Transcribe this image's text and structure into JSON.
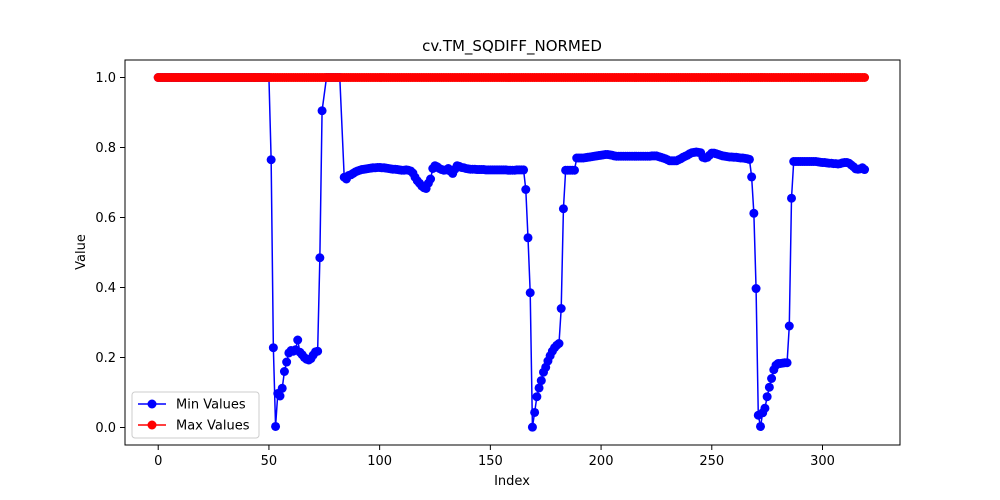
{
  "chart_data": {
    "type": "line",
    "title": "cv.TM_SQDIFF_NORMED",
    "xlabel": "Index",
    "ylabel": "Value",
    "xlim": [
      -15,
      335
    ],
    "ylim": [
      -0.05,
      1.05
    ],
    "xticks": [
      0,
      50,
      100,
      150,
      200,
      250,
      300
    ],
    "yticks": [
      0.0,
      0.2,
      0.4,
      0.6,
      0.8,
      1.0
    ],
    "xtick_labels": [
      "0",
      "50",
      "100",
      "150",
      "200",
      "250",
      "300"
    ],
    "ytick_labels": [
      "0.0",
      "0.2",
      "0.4",
      "0.6",
      "0.8",
      "1.0"
    ],
    "grid": false,
    "legend_position": "lower-left",
    "series": [
      {
        "name": "Min Values",
        "color": "#0000ff",
        "marker": "circle",
        "segments": [
          {
            "x_start": 0,
            "x_end": 50,
            "value": 1.0
          },
          {
            "x_start": 76,
            "x_end": 82,
            "value": 1.0
          }
        ],
        "points": [
          [
            51,
            0.765
          ],
          [
            52,
            0.228
          ],
          [
            53,
            0.003
          ],
          [
            54,
            0.097
          ],
          [
            55,
            0.09
          ],
          [
            56,
            0.112
          ],
          [
            57,
            0.16
          ],
          [
            58,
            0.187
          ],
          [
            59,
            0.213
          ],
          [
            60,
            0.22
          ],
          [
            61,
            0.218
          ],
          [
            62,
            0.222
          ],
          [
            63,
            0.25
          ],
          [
            64,
            0.215
          ],
          [
            65,
            0.208
          ],
          [
            66,
            0.2
          ],
          [
            67,
            0.195
          ],
          [
            68,
            0.193
          ],
          [
            69,
            0.197
          ],
          [
            70,
            0.207
          ],
          [
            71,
            0.216
          ],
          [
            72,
            0.218
          ],
          [
            73,
            0.485
          ],
          [
            74,
            0.905
          ],
          [
            84,
            0.715
          ],
          [
            85,
            0.71
          ],
          [
            86,
            0.72
          ],
          [
            87,
            0.722
          ],
          [
            88,
            0.726
          ],
          [
            89,
            0.73
          ],
          [
            90,
            0.733
          ],
          [
            91,
            0.735
          ],
          [
            92,
            0.737
          ],
          [
            93,
            0.738
          ],
          [
            94,
            0.739
          ],
          [
            95,
            0.74
          ],
          [
            96,
            0.741
          ],
          [
            97,
            0.742
          ],
          [
            98,
            0.742
          ],
          [
            99,
            0.743
          ],
          [
            100,
            0.743
          ],
          [
            101,
            0.742
          ],
          [
            102,
            0.742
          ],
          [
            103,
            0.741
          ],
          [
            104,
            0.74
          ],
          [
            105,
            0.739
          ],
          [
            106,
            0.738
          ],
          [
            107,
            0.738
          ],
          [
            108,
            0.737
          ],
          [
            109,
            0.736
          ],
          [
            110,
            0.735
          ],
          [
            111,
            0.735
          ],
          [
            112,
            0.736
          ],
          [
            113,
            0.735
          ],
          [
            114,
            0.733
          ],
          [
            115,
            0.727
          ],
          [
            116,
            0.715
          ],
          [
            117,
            0.705
          ],
          [
            118,
            0.698
          ],
          [
            119,
            0.69
          ],
          [
            120,
            0.685
          ],
          [
            121,
            0.683
          ],
          [
            122,
            0.698
          ],
          [
            123,
            0.71
          ],
          [
            124,
            0.74
          ],
          [
            125,
            0.748
          ],
          [
            126,
            0.745
          ],
          [
            127,
            0.74
          ],
          [
            128,
            0.737
          ],
          [
            129,
            0.735
          ],
          [
            130,
            0.736
          ],
          [
            131,
            0.74
          ],
          [
            132,
            0.732
          ],
          [
            133,
            0.726
          ],
          [
            134,
            0.738
          ],
          [
            135,
            0.748
          ],
          [
            136,
            0.746
          ],
          [
            137,
            0.743
          ],
          [
            138,
            0.742
          ],
          [
            139,
            0.74
          ],
          [
            140,
            0.739
          ],
          [
            141,
            0.738
          ],
          [
            142,
            0.738
          ],
          [
            143,
            0.738
          ],
          [
            144,
            0.737
          ],
          [
            145,
            0.737
          ],
          [
            146,
            0.737
          ],
          [
            147,
            0.737
          ],
          [
            148,
            0.736
          ],
          [
            149,
            0.736
          ],
          [
            150,
            0.736
          ],
          [
            151,
            0.736
          ],
          [
            152,
            0.736
          ],
          [
            153,
            0.736
          ],
          [
            154,
            0.736
          ],
          [
            155,
            0.736
          ],
          [
            156,
            0.736
          ],
          [
            157,
            0.736
          ],
          [
            158,
            0.735
          ],
          [
            159,
            0.735
          ],
          [
            160,
            0.735
          ],
          [
            161,
            0.735
          ],
          [
            162,
            0.736
          ],
          [
            163,
            0.736
          ],
          [
            164,
            0.736
          ],
          [
            165,
            0.736
          ],
          [
            166,
            0.68
          ],
          [
            167,
            0.542
          ],
          [
            168,
            0.385
          ],
          [
            169,
            0.001
          ],
          [
            170,
            0.043
          ],
          [
            171,
            0.088
          ],
          [
            172,
            0.113
          ],
          [
            173,
            0.134
          ],
          [
            174,
            0.158
          ],
          [
            175,
            0.172
          ],
          [
            176,
            0.19
          ],
          [
            177,
            0.205
          ],
          [
            178,
            0.218
          ],
          [
            179,
            0.228
          ],
          [
            180,
            0.235
          ],
          [
            181,
            0.24
          ],
          [
            182,
            0.34
          ],
          [
            183,
            0.625
          ],
          [
            184,
            0.735
          ],
          [
            185,
            0.735
          ],
          [
            186,
            0.735
          ],
          [
            187,
            0.735
          ],
          [
            188,
            0.735
          ],
          [
            189,
            0.77
          ],
          [
            190,
            0.77
          ],
          [
            191,
            0.77
          ],
          [
            192,
            0.77
          ],
          [
            193,
            0.771
          ],
          [
            194,
            0.772
          ],
          [
            195,
            0.773
          ],
          [
            196,
            0.774
          ],
          [
            197,
            0.775
          ],
          [
            198,
            0.776
          ],
          [
            199,
            0.777
          ],
          [
            200,
            0.778
          ],
          [
            201,
            0.779
          ],
          [
            202,
            0.78
          ],
          [
            203,
            0.78
          ],
          [
            204,
            0.779
          ],
          [
            205,
            0.778
          ],
          [
            206,
            0.776
          ],
          [
            207,
            0.775
          ],
          [
            208,
            0.775
          ],
          [
            209,
            0.775
          ],
          [
            210,
            0.775
          ],
          [
            211,
            0.775
          ],
          [
            212,
            0.775
          ],
          [
            213,
            0.775
          ],
          [
            214,
            0.775
          ],
          [
            215,
            0.775
          ],
          [
            216,
            0.775
          ],
          [
            217,
            0.775
          ],
          [
            218,
            0.775
          ],
          [
            219,
            0.775
          ],
          [
            220,
            0.775
          ],
          [
            221,
            0.775
          ],
          [
            222,
            0.775
          ],
          [
            223,
            0.776
          ],
          [
            224,
            0.776
          ],
          [
            225,
            0.776
          ],
          [
            226,
            0.774
          ],
          [
            227,
            0.772
          ],
          [
            228,
            0.77
          ],
          [
            229,
            0.768
          ],
          [
            230,
            0.765
          ],
          [
            231,
            0.762
          ],
          [
            232,
            0.762
          ],
          [
            233,
            0.762
          ],
          [
            234,
            0.762
          ],
          [
            235,
            0.765
          ],
          [
            236,
            0.768
          ],
          [
            237,
            0.772
          ],
          [
            238,
            0.775
          ],
          [
            239,
            0.778
          ],
          [
            240,
            0.782
          ],
          [
            241,
            0.785
          ],
          [
            242,
            0.786
          ],
          [
            243,
            0.787
          ],
          [
            244,
            0.786
          ],
          [
            245,
            0.785
          ],
          [
            246,
            0.772
          ],
          [
            247,
            0.77
          ],
          [
            248,
            0.772
          ],
          [
            249,
            0.778
          ],
          [
            250,
            0.784
          ],
          [
            251,
            0.784
          ],
          [
            252,
            0.782
          ],
          [
            253,
            0.78
          ],
          [
            254,
            0.778
          ],
          [
            255,
            0.776
          ],
          [
            256,
            0.775
          ],
          [
            257,
            0.774
          ],
          [
            258,
            0.773
          ],
          [
            259,
            0.773
          ],
          [
            260,
            0.772
          ],
          [
            261,
            0.772
          ],
          [
            262,
            0.771
          ],
          [
            263,
            0.77
          ],
          [
            264,
            0.77
          ],
          [
            265,
            0.769
          ],
          [
            266,
            0.768
          ],
          [
            267,
            0.766
          ],
          [
            268,
            0.716
          ],
          [
            269,
            0.612
          ],
          [
            270,
            0.397
          ],
          [
            271,
            0.035
          ],
          [
            272,
            0.003
          ],
          [
            273,
            0.042
          ],
          [
            274,
            0.055
          ],
          [
            275,
            0.088
          ],
          [
            276,
            0.115
          ],
          [
            277,
            0.14
          ],
          [
            278,
            0.165
          ],
          [
            279,
            0.178
          ],
          [
            280,
            0.183
          ],
          [
            281,
            0.183
          ],
          [
            282,
            0.184
          ],
          [
            283,
            0.185
          ],
          [
            284,
            0.185
          ],
          [
            285,
            0.29
          ],
          [
            286,
            0.655
          ],
          [
            287,
            0.76
          ],
          [
            288,
            0.76
          ],
          [
            289,
            0.76
          ],
          [
            290,
            0.76
          ],
          [
            291,
            0.76
          ],
          [
            292,
            0.76
          ],
          [
            293,
            0.76
          ],
          [
            294,
            0.76
          ],
          [
            295,
            0.76
          ],
          [
            296,
            0.76
          ],
          [
            297,
            0.76
          ],
          [
            298,
            0.759
          ],
          [
            299,
            0.758
          ],
          [
            300,
            0.757
          ],
          [
            301,
            0.757
          ],
          [
            302,
            0.756
          ],
          [
            303,
            0.755
          ],
          [
            304,
            0.755
          ],
          [
            305,
            0.754
          ],
          [
            306,
            0.754
          ],
          [
            307,
            0.753
          ],
          [
            308,
            0.754
          ],
          [
            309,
            0.756
          ],
          [
            310,
            0.757
          ],
          [
            311,
            0.757
          ],
          [
            312,
            0.755
          ],
          [
            313,
            0.75
          ],
          [
            314,
            0.745
          ],
          [
            315,
            0.739
          ],
          [
            316,
            0.738
          ],
          [
            317,
            0.739
          ],
          [
            318,
            0.742
          ],
          [
            319,
            0.737
          ]
        ]
      },
      {
        "name": "Max Values",
        "color": "#ff0000",
        "marker": "circle",
        "segments": [
          {
            "x_start": 0,
            "x_end": 319,
            "value": 1.0
          }
        ],
        "points": []
      }
    ]
  }
}
